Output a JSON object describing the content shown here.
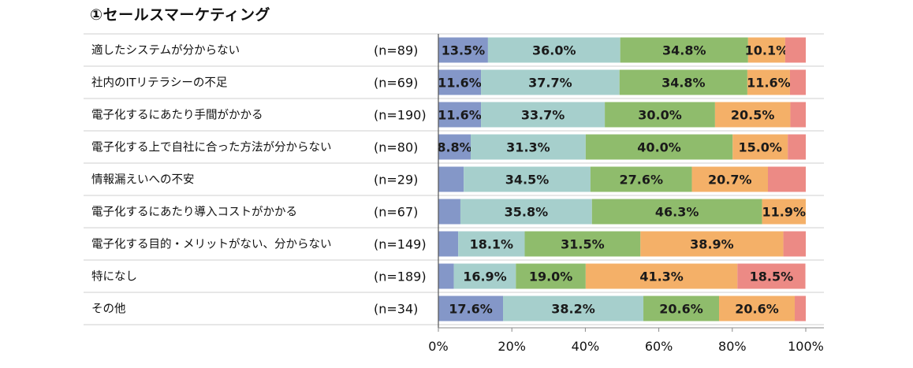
{
  "chart_data": {
    "type": "bar",
    "orientation": "horizontal",
    "stacked": true,
    "title": "①セールスマーケティング",
    "categories": [
      "適したシステムが分からない",
      "社内のITリテラシーの不足",
      "電子化するにあたり手間がかかる",
      "電子化する上で自社に合った方法が分からない",
      "情報漏えいへの不安",
      "電子化するにあたり導入コストがかかる",
      "電子化する目的・メリットがない、分からない",
      "特になし",
      "その他"
    ],
    "n_labels": [
      "(n=89)",
      "(n=69)",
      "(n=190)",
      "(n=80)",
      "(n=29)",
      "(n=67)",
      "(n=149)",
      "(n=189)",
      "(n=34)"
    ],
    "series": [
      {
        "name": "series-1",
        "color": "#8497c8",
        "values": [
          13.5,
          11.6,
          11.6,
          8.8,
          6.9,
          6.0,
          5.4,
          4.2,
          17.6
        ],
        "labels": [
          "13.5%",
          "11.6%",
          "11.6%",
          "8.8%",
          "",
          "",
          "",
          "",
          "17.6%"
        ]
      },
      {
        "name": "series-2",
        "color": "#a6cfcc",
        "values": [
          36.0,
          37.7,
          33.7,
          31.3,
          34.5,
          35.8,
          18.1,
          16.9,
          38.2
        ],
        "labels": [
          "36.0%",
          "37.7%",
          "33.7%",
          "31.3%",
          "34.5%",
          "35.8%",
          "18.1%",
          "16.9%",
          "38.2%"
        ]
      },
      {
        "name": "series-3",
        "color": "#8fbc6c",
        "values": [
          34.8,
          34.8,
          30.0,
          40.0,
          27.6,
          46.3,
          31.5,
          19.0,
          20.6
        ],
        "labels": [
          "34.8%",
          "34.8%",
          "30.0%",
          "40.0%",
          "27.6%",
          "46.3%",
          "31.5%",
          "19.0%",
          "20.6%"
        ]
      },
      {
        "name": "series-4",
        "color": "#f4b068",
        "values": [
          10.1,
          11.6,
          20.5,
          15.0,
          20.7,
          11.9,
          38.9,
          41.3,
          20.6
        ],
        "labels": [
          "10.1%",
          "11.6%",
          "20.5%",
          "15.0%",
          "20.7%",
          "11.9%",
          "38.9%",
          "41.3%",
          "20.6%"
        ]
      },
      {
        "name": "series-5",
        "color": "#ec8a85",
        "values": [
          5.6,
          4.3,
          4.2,
          4.9,
          10.3,
          0.0,
          6.1,
          18.5,
          3.0
        ],
        "labels": [
          "",
          "",
          "",
          "",
          "",
          "",
          "",
          "18.5%",
          ""
        ]
      }
    ],
    "x_ticks": [
      "0%",
      "20%",
      "40%",
      "60%",
      "80%",
      "100%"
    ],
    "xlim": [
      0,
      100
    ],
    "grid": false,
    "legend": "none"
  }
}
